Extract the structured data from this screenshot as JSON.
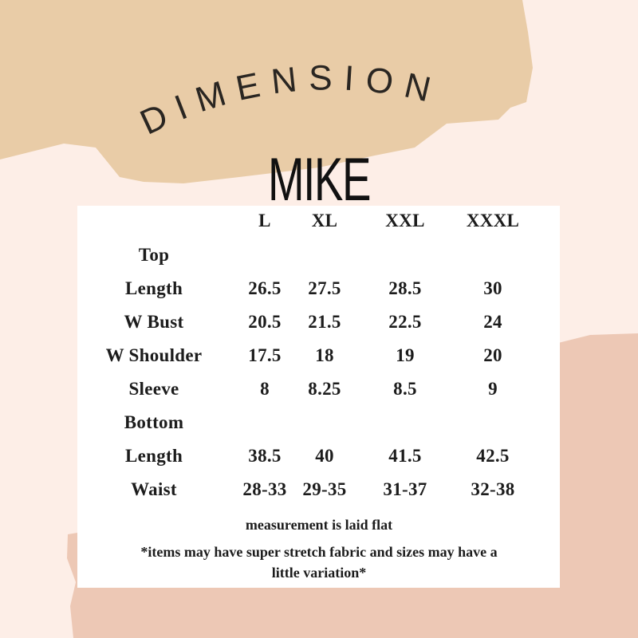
{
  "heading": "DIMENSION",
  "model": "MIKE",
  "colors": {
    "background": "#fdeee7",
    "tan_blob": "#e9cca7",
    "salmon_blob": "#edc8b5",
    "card": "#ffffff"
  },
  "table": {
    "sizes": [
      "L",
      "XL",
      "XXL",
      "XXXL"
    ],
    "rows": [
      {
        "label": "Top",
        "values": []
      },
      {
        "label": "Length",
        "values": [
          "26.5",
          "27.5",
          "28.5",
          "30"
        ]
      },
      {
        "label": "W Bust",
        "values": [
          "20.5",
          "21.5",
          "22.5",
          "24"
        ]
      },
      {
        "label": "W Shoulder",
        "values": [
          "17.5",
          "18",
          "19",
          "20"
        ]
      },
      {
        "label": "Sleeve",
        "values": [
          "8",
          "8.25",
          "8.5",
          "9"
        ]
      },
      {
        "label": "Bottom",
        "values": []
      },
      {
        "label": "Length",
        "values": [
          "38.5",
          "40",
          "41.5",
          "42.5"
        ]
      },
      {
        "label": "Waist",
        "values": [
          "28-33",
          "29-35",
          "31-37",
          "32-38"
        ]
      }
    ]
  },
  "notes": {
    "measurement": "measurement is laid flat",
    "disclaimer_line1": "*items may have super stretch fabric and sizes may have a",
    "disclaimer_line2": "little variation*"
  }
}
